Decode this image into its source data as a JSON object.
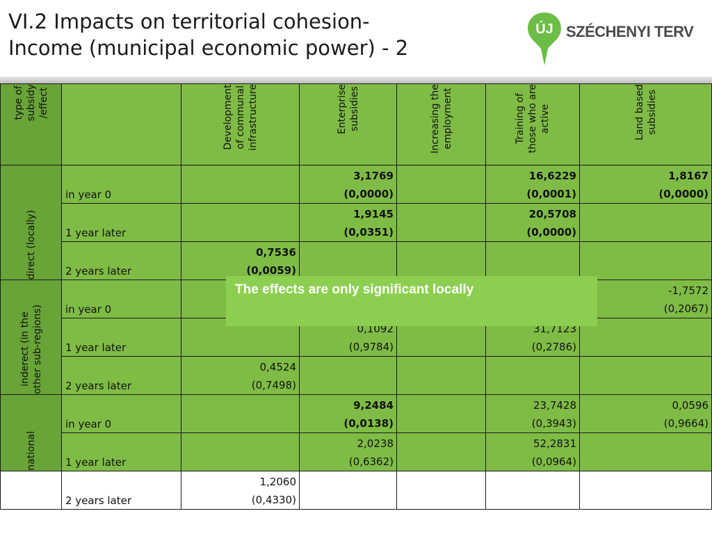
{
  "title": "VI.2 Impacts on territorial cohesion-\nIncome (municipal economic power) - 2",
  "logo": {
    "text": "SZÉCHENYI TERV",
    "badge": "ÚJ"
  },
  "header": {
    "corner": "type of\nsubsidy\n/effect",
    "cols": [
      "Development\nof communal\ninfrastructure",
      "Enterprise\nsubsidies",
      "Increasing the\nemployment",
      "Training of\nthose who are\nactive",
      "Land based\nsubsidies"
    ]
  },
  "groups": {
    "direct": "direct (locally)",
    "inderect": "inderect (in the\nother sub-regions)",
    "national": "national"
  },
  "rows": [
    {
      "label": "in year 0",
      "cells": [
        "",
        "3,1769\n(0,0000)",
        "",
        "16,6229\n(0,0001)",
        "1,8167\n(0,0000)"
      ]
    },
    {
      "label": "1 year later",
      "cells": [
        "",
        "1,9145\n(0,0351)",
        "",
        "20,5708\n(0,0000)",
        ""
      ]
    },
    {
      "label": "2 years later",
      "cells": [
        "0,7536\n(0,0059)",
        "",
        "",
        "",
        ""
      ]
    },
    {
      "label": "in year 0",
      "cells": [
        "",
        "",
        "",
        "",
        "-1,7572\n(0,2067)"
      ]
    },
    {
      "label": "1 year later",
      "cells": [
        "",
        "0,1092\n(0,9784)",
        "",
        "31,7123\n(0,2786)",
        ""
      ]
    },
    {
      "label": "2 years later",
      "cells": [
        "0,4524\n(0,7498)",
        "",
        "",
        "",
        ""
      ]
    },
    {
      "label": "in year 0",
      "cells": [
        "",
        "9,2484\n(0,0138)",
        "",
        "23,7428\n(0,3943)",
        "0,0596\n(0,9664)"
      ]
    },
    {
      "label": "1 year later",
      "cells": [
        "",
        "2,0238\n(0,6362)",
        "",
        "52,2831\n(0,0964)",
        ""
      ]
    },
    {
      "label": "2 years later",
      "cells": [
        "1,2060\n(0,4330)",
        "",
        "",
        "",
        ""
      ]
    }
  ],
  "callout": "The effects are only significant locally",
  "colors": {
    "dark_green": "#68a437",
    "light_green": "#7fbc46",
    "callout": "#8ccf50",
    "logo_green": "#6cbd45"
  }
}
